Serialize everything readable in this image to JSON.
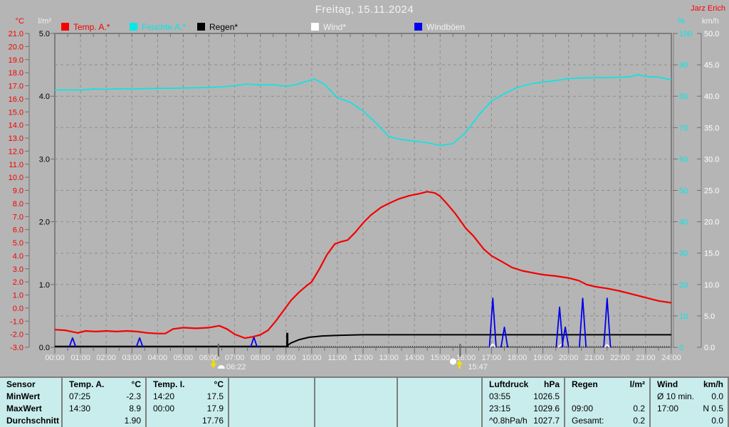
{
  "header": {
    "title": "Freitag, 15.11.2024",
    "station": "Jarz Erich"
  },
  "axis_units": {
    "temp": "°C",
    "rain": "l/m²",
    "humidity": "%",
    "wind": "km/h"
  },
  "colors": {
    "background": "#b5b5b5",
    "grid": "#8e8e8e",
    "plot_border": "#7d7d7d",
    "axis": "#6f6f6f",
    "text_light": "#f2f2f2",
    "temp": "#f40000",
    "humidity": "#00e8e8",
    "rain": "#000000",
    "wind": "#ffffff",
    "gust": "#0000e8",
    "table_bg": "#c9eded",
    "marker": "#666666"
  },
  "legend": [
    {
      "id": "temp-a",
      "label": "Temp. A.*",
      "color": "#f40000",
      "text_color": "#f40000"
    },
    {
      "id": "feuchte-a",
      "label": "Feuchte A.*",
      "color": "#00e8e8",
      "text_color": "#00e8e8"
    },
    {
      "id": "regen",
      "label": "Regen*",
      "color": "#000000",
      "text_color": "#000000"
    },
    {
      "id": "wind",
      "label": "Wind*",
      "color": "#ffffff",
      "text_color": "#f2f2f2"
    },
    {
      "id": "windboeen",
      "label": "Windböen",
      "color": "#0000e8",
      "text_color": "#f2f2f2"
    }
  ],
  "chart_data": {
    "type": "line",
    "title": "Freitag, 15.11.2024",
    "x_axis": {
      "min": 0,
      "max": 24,
      "grid": true,
      "tick_labels": [
        "00:00",
        "01:00",
        "02:00",
        "03:00",
        "04:00",
        "05:00",
        "06:00",
        "07:00",
        "08:00",
        "09:00",
        "10:00",
        "11:00",
        "12:00",
        "13:00",
        "14:00",
        "15:00",
        "16:00",
        "17:00",
        "18:00",
        "19:00",
        "20:00",
        "21:00",
        "22:00",
        "23:00",
        "24:00"
      ]
    },
    "y_axes": {
      "temp": {
        "unit": "°C",
        "min": -3,
        "max": 21,
        "step": 1,
        "decimals": 1,
        "color": "#f40000"
      },
      "rain": {
        "unit": "l/m²",
        "min": 0,
        "max": 5,
        "step": 1,
        "decimals": 1,
        "color": "#000000"
      },
      "humidity": {
        "unit": "%",
        "min": 0,
        "max": 100,
        "step": 10,
        "decimals": 0,
        "color": "#00e8e8"
      },
      "wind": {
        "unit": "km/h",
        "min": 0,
        "max": 50,
        "step": 5,
        "decimals": 1,
        "color": "#ffffff"
      }
    },
    "series": [
      {
        "id": "humidity",
        "name": "Feuchte A.",
        "axis": "humidity",
        "color": "#00e8e8",
        "width": 1.6,
        "points": [
          [
            0,
            82
          ],
          [
            0.5,
            82
          ],
          [
            1,
            82
          ],
          [
            1.5,
            82.3
          ],
          [
            2,
            82.2
          ],
          [
            2.5,
            82.4
          ],
          [
            3,
            82.3
          ],
          [
            3.5,
            82.4
          ],
          [
            4,
            82.5
          ],
          [
            4.5,
            82.5
          ],
          [
            5,
            82.6
          ],
          [
            5.5,
            82.7
          ],
          [
            6,
            82.8
          ],
          [
            6.5,
            83
          ],
          [
            7,
            83.3
          ],
          [
            7.5,
            83.9
          ],
          [
            8,
            83.6
          ],
          [
            8.5,
            83.7
          ],
          [
            9,
            83.1
          ],
          [
            9.4,
            83.7
          ],
          [
            9.7,
            84.5
          ],
          [
            10.1,
            85.5
          ],
          [
            10.5,
            83.8
          ],
          [
            11,
            79.5
          ],
          [
            11.5,
            78.1
          ],
          [
            12,
            75.3
          ],
          [
            12.5,
            71.5
          ],
          [
            13,
            67.2
          ],
          [
            13.5,
            66.2
          ],
          [
            14,
            65.7
          ],
          [
            14.5,
            65.2
          ],
          [
            15,
            64.3
          ],
          [
            15.5,
            64.9
          ],
          [
            16,
            68.5
          ],
          [
            16.5,
            74
          ],
          [
            17,
            78.5
          ],
          [
            17.5,
            80.8
          ],
          [
            18,
            82.8
          ],
          [
            18.5,
            83.9
          ],
          [
            19,
            84.5
          ],
          [
            19.5,
            85
          ],
          [
            20,
            85.6
          ],
          [
            20.5,
            85.8
          ],
          [
            21,
            85.9
          ],
          [
            21.5,
            85.9
          ],
          [
            22,
            86
          ],
          [
            22.4,
            86.2
          ],
          [
            22.7,
            86.9
          ],
          [
            23,
            86.3
          ],
          [
            23.5,
            86.1
          ],
          [
            24,
            85.2
          ]
        ]
      },
      {
        "id": "rain",
        "name": "Regen",
        "axis": "rain",
        "color": "#000000",
        "width": 2,
        "points": [
          [
            0,
            0.015
          ],
          [
            9,
            0.015
          ],
          [
            9.2,
            0.07
          ],
          [
            9.5,
            0.12
          ],
          [
            9.9,
            0.16
          ],
          [
            10.4,
            0.18
          ],
          [
            11,
            0.19
          ],
          [
            12,
            0.2
          ],
          [
            24,
            0.2
          ]
        ]
      },
      {
        "id": "temp",
        "name": "Temp. A.",
        "axis": "temp",
        "color": "#f40000",
        "width": 2.2,
        "points": [
          [
            0,
            -1.65
          ],
          [
            0.4,
            -1.7
          ],
          [
            0.9,
            -1.9
          ],
          [
            1.2,
            -1.75
          ],
          [
            1.6,
            -1.8
          ],
          [
            2,
            -1.75
          ],
          [
            2.4,
            -1.8
          ],
          [
            2.8,
            -1.75
          ],
          [
            3.2,
            -1.8
          ],
          [
            3.6,
            -1.9
          ],
          [
            4,
            -1.95
          ],
          [
            4.3,
            -1.95
          ],
          [
            4.6,
            -1.6
          ],
          [
            5,
            -1.5
          ],
          [
            5.5,
            -1.55
          ],
          [
            6,
            -1.5
          ],
          [
            6.4,
            -1.35
          ],
          [
            6.7,
            -1.6
          ],
          [
            7,
            -2
          ],
          [
            7.4,
            -2.3
          ],
          [
            7.7,
            -2.2
          ],
          [
            8,
            -2.05
          ],
          [
            8.3,
            -1.7
          ],
          [
            8.6,
            -1
          ],
          [
            8.9,
            -0.2
          ],
          [
            9.2,
            0.6
          ],
          [
            9.5,
            1.2
          ],
          [
            9.8,
            1.7
          ],
          [
            10,
            2
          ],
          [
            10.3,
            3
          ],
          [
            10.6,
            4.1
          ],
          [
            10.9,
            4.9
          ],
          [
            11.1,
            5.05
          ],
          [
            11.4,
            5.2
          ],
          [
            11.7,
            5.8
          ],
          [
            12,
            6.5
          ],
          [
            12.3,
            7.1
          ],
          [
            12.7,
            7.7
          ],
          [
            13,
            8
          ],
          [
            13.4,
            8.35
          ],
          [
            13.8,
            8.6
          ],
          [
            14.2,
            8.75
          ],
          [
            14.5,
            8.9
          ],
          [
            14.8,
            8.8
          ],
          [
            15,
            8.55
          ],
          [
            15.3,
            7.9
          ],
          [
            15.6,
            7.2
          ],
          [
            16,
            6.1
          ],
          [
            16.3,
            5.5
          ],
          [
            16.7,
            4.5
          ],
          [
            17,
            4
          ],
          [
            17.4,
            3.55
          ],
          [
            17.8,
            3.1
          ],
          [
            18.2,
            2.85
          ],
          [
            18.6,
            2.7
          ],
          [
            19,
            2.55
          ],
          [
            19.5,
            2.45
          ],
          [
            20,
            2.3
          ],
          [
            20.4,
            2.1
          ],
          [
            20.7,
            1.8
          ],
          [
            21,
            1.65
          ],
          [
            21.5,
            1.5
          ],
          [
            22,
            1.3
          ],
          [
            22.5,
            1.05
          ],
          [
            23,
            0.8
          ],
          [
            23.5,
            0.55
          ],
          [
            24,
            0.4
          ]
        ]
      }
    ],
    "rain_tick": {
      "hour": 9.05,
      "value": 0.23
    },
    "gust_spikes": [
      [
        0.69,
        1.5
      ],
      [
        3.3,
        1.5
      ],
      [
        7.75,
        1.6
      ],
      [
        17.05,
        7.8
      ],
      [
        17.5,
        3.2
      ],
      [
        19.65,
        6.4
      ],
      [
        19.87,
        3.2
      ],
      [
        20.55,
        7.8
      ],
      [
        21.5,
        7.8
      ]
    ],
    "wind_blips": [
      [
        17.05,
        0.5
      ],
      [
        19.7,
        0.4
      ],
      [
        21.5,
        0.4
      ]
    ],
    "markers": [
      {
        "time": "06:22",
        "hour": 6.37,
        "type": "sunrise"
      },
      {
        "time": "15:47",
        "hour": 15.78,
        "type": "sunset"
      }
    ]
  },
  "table": {
    "row_labels": [
      "Sensor",
      "MinWert",
      "MaxWert",
      "Durchschnitt"
    ],
    "columns": [
      {
        "id": "temp-a",
        "name": "Temp. A.",
        "unit": "°C",
        "rows": [
          [
            "07:25",
            "-2.3"
          ],
          [
            "14:30",
            "8.9"
          ],
          [
            "",
            "1.90"
          ]
        ]
      },
      {
        "id": "temp-i",
        "name": "Temp. I.",
        "unit": "°C",
        "rows": [
          [
            "14:20",
            "17.5"
          ],
          [
            "00:00",
            "17.9"
          ],
          [
            "",
            "17.76"
          ]
        ]
      },
      {
        "id": "empty-1",
        "name": "",
        "unit": "",
        "rows": [
          [
            "",
            ""
          ],
          [
            "",
            ""
          ],
          [
            "",
            ""
          ]
        ]
      },
      {
        "id": "empty-2",
        "name": "",
        "unit": "",
        "rows": [
          [
            "",
            ""
          ],
          [
            "",
            ""
          ],
          [
            "",
            ""
          ]
        ]
      },
      {
        "id": "empty-3",
        "name": "",
        "unit": "",
        "rows": [
          [
            "",
            ""
          ],
          [
            "",
            ""
          ],
          [
            "",
            ""
          ]
        ]
      },
      {
        "id": "luftdruck",
        "name": "Luftdruck",
        "unit": "hPa",
        "rows": [
          [
            "03:55",
            "1026.5"
          ],
          [
            "23:15",
            "1029.6"
          ],
          [
            "^0.8hPa/h",
            "1027.7"
          ]
        ]
      },
      {
        "id": "regen",
        "name": "Regen",
        "unit": "l/m²",
        "rows": [
          [
            "",
            ""
          ],
          [
            "09:00",
            "0.2"
          ],
          [
            "Gesamt:",
            "0.2"
          ]
        ]
      },
      {
        "id": "wind",
        "name": "Wind",
        "unit": "km/h",
        "rows": [
          [
            "Ø 10 min.",
            "0.0"
          ],
          [
            "17:00",
            "N 0.5"
          ],
          [
            "",
            "0.0"
          ]
        ]
      }
    ]
  }
}
